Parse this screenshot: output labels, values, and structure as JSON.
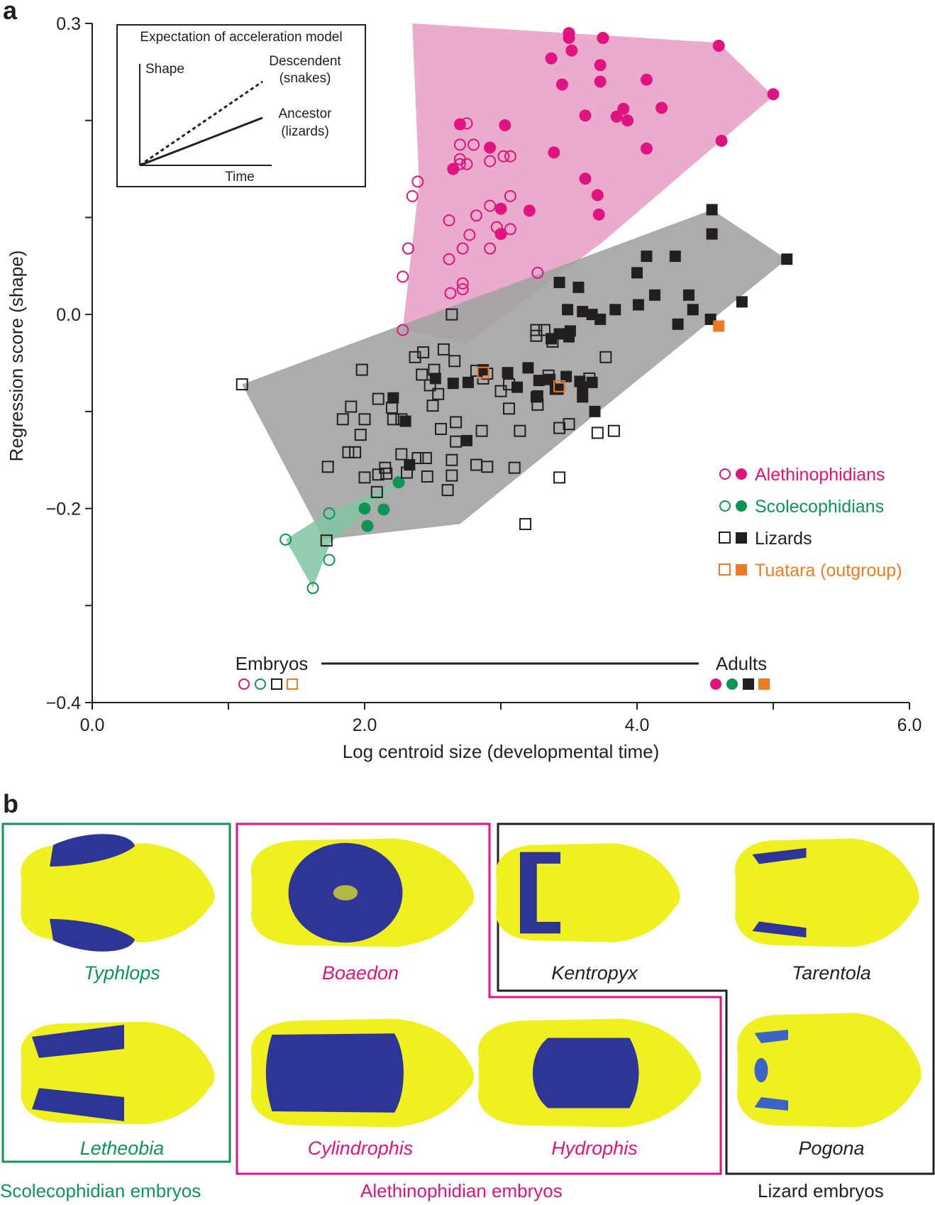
{
  "panel_a_letter": "a",
  "panel_b_letter": "b",
  "colors": {
    "alethinophidians": "#e0137f",
    "alethinophidians_fill": "#e89cc4",
    "scolecophidians": "#0e9455",
    "scolecophidians_fill": "#80c6a3",
    "lizards": "#231f20",
    "lizards_fill": "#a3a3a3",
    "tuatara": "#ee7b22",
    "skull_bone": "#eef01f",
    "skull_region": "#2f3596"
  },
  "chart_data": {
    "type": "scatter",
    "xlabel": "Log centroid size (developmental time)",
    "ylabel": "Regression score (shape)",
    "xlim": [
      0.0,
      6.0
    ],
    "ylim": [
      -0.4,
      0.3
    ],
    "xticks": [
      0.0,
      2.0,
      4.0,
      6.0
    ],
    "xtick_labels": [
      "0.0",
      "2.0",
      "4.0",
      "6.0"
    ],
    "yticks": [
      0.3,
      0.0,
      -0.2,
      -0.4
    ],
    "ytick_labels": [
      "0.3",
      "0.0",
      "−0.2",
      "−0.4"
    ],
    "legend": {
      "position": "right",
      "entries": [
        "Alethinophidians",
        "Scolecophidians",
        "Lizards",
        "Tuatara (outgroup)"
      ]
    },
    "inset": {
      "title": "Expectation of acceleration model",
      "ylabel": "Shape",
      "xlabel": "Time",
      "line_dashed_label_1": "Descendent",
      "line_dashed_label_2": "(snakes)",
      "line_solid_label_1": "Ancestor",
      "line_solid_label_2": "(lizards)"
    },
    "stage_key": {
      "embryos": "Embryos",
      "adults": "Adults"
    },
    "hulls": {
      "alethinophidians": [
        [
          2.35,
          0.3
        ],
        [
          3.5,
          0.29
        ],
        [
          4.6,
          0.28
        ],
        [
          5.0,
          0.225
        ],
        [
          3.75,
          0.075
        ],
        [
          2.75,
          -0.03
        ],
        [
          2.28,
          -0.015
        ],
        [
          2.4,
          0.135
        ]
      ],
      "lizards": [
        [
          1.1,
          -0.072
        ],
        [
          4.55,
          0.108
        ],
        [
          5.1,
          0.057
        ],
        [
          2.7,
          -0.216
        ],
        [
          1.7,
          -0.232
        ]
      ],
      "scolecophidians": [
        [
          2.25,
          -0.173
        ],
        [
          1.75,
          -0.235
        ],
        [
          1.62,
          -0.282
        ],
        [
          1.42,
          -0.232
        ],
        [
          1.72,
          -0.205
        ]
      ]
    },
    "series": [
      {
        "name": "Alethinophidian embryos",
        "marker": "circle",
        "filled": false,
        "group": "alethinophidians",
        "points": [
          [
            2.75,
            0.197
          ],
          [
            2.7,
            0.175
          ],
          [
            2.8,
            0.175
          ],
          [
            2.7,
            0.16
          ],
          [
            2.7,
            0.155
          ],
          [
            2.75,
            0.155
          ],
          [
            2.92,
            0.158
          ],
          [
            3.02,
            0.163
          ],
          [
            3.07,
            0.163
          ],
          [
            2.39,
            0.137
          ],
          [
            2.35,
            0.122
          ],
          [
            2.92,
            0.112
          ],
          [
            3.07,
            0.122
          ],
          [
            2.82,
            0.102
          ],
          [
            2.62,
            0.097
          ],
          [
            2.97,
            0.09
          ],
          [
            3.07,
            0.088
          ],
          [
            2.77,
            0.082
          ],
          [
            2.32,
            0.068
          ],
          [
            2.72,
            0.068
          ],
          [
            2.92,
            0.068
          ],
          [
            2.62,
            0.057
          ],
          [
            3.27,
            0.043
          ],
          [
            2.28,
            0.039
          ],
          [
            2.72,
            0.032
          ],
          [
            2.72,
            0.026
          ],
          [
            2.63,
            0.022
          ],
          [
            2.28,
            -0.016
          ]
        ]
      },
      {
        "name": "Alethinophidian adults",
        "marker": "circle",
        "filled": true,
        "group": "alethinophidians",
        "points": [
          [
            3.5,
            0.29
          ],
          [
            3.5,
            0.285
          ],
          [
            3.75,
            0.285
          ],
          [
            3.75,
            0.285
          ],
          [
            4.6,
            0.277
          ],
          [
            3.52,
            0.272
          ],
          [
            3.37,
            0.264
          ],
          [
            3.73,
            0.257
          ],
          [
            3.73,
            0.24
          ],
          [
            4.07,
            0.242
          ],
          [
            3.45,
            0.237
          ],
          [
            5.0,
            0.227
          ],
          [
            3.9,
            0.212
          ],
          [
            4.18,
            0.213
          ],
          [
            3.85,
            0.204
          ],
          [
            3.03,
            0.195
          ],
          [
            3.93,
            0.2
          ],
          [
            3.62,
            0.205
          ],
          [
            2.7,
            0.196
          ],
          [
            4.62,
            0.179
          ],
          [
            4.07,
            0.171
          ],
          [
            2.92,
            0.172
          ],
          [
            3.39,
            0.167
          ],
          [
            2.65,
            0.15
          ],
          [
            3.62,
            0.14
          ],
          [
            3.71,
            0.123
          ],
          [
            3.0,
            0.109
          ],
          [
            3.21,
            0.107
          ],
          [
            3.72,
            0.103
          ],
          [
            3.0,
            0.083
          ]
        ]
      },
      {
        "name": "Scolecophidian embryos",
        "marker": "circle",
        "filled": false,
        "group": "scolecophidians",
        "points": [
          [
            1.74,
            -0.205
          ],
          [
            1.42,
            -0.232
          ],
          [
            1.74,
            -0.253
          ],
          [
            1.62,
            -0.282
          ]
        ]
      },
      {
        "name": "Scolecophidian adults",
        "marker": "circle",
        "filled": true,
        "group": "scolecophidians",
        "points": [
          [
            2.25,
            -0.173
          ],
          [
            2.0,
            -0.2
          ],
          [
            2.14,
            -0.201
          ],
          [
            2.02,
            -0.218
          ]
        ]
      },
      {
        "name": "Lizard embryos",
        "marker": "square",
        "filled": false,
        "group": "lizards",
        "points": [
          [
            1.1,
            -0.072
          ],
          [
            2.64,
            0.0
          ],
          [
            3.26,
            -0.016
          ],
          [
            3.26,
            -0.022
          ],
          [
            3.32,
            -0.016
          ],
          [
            3.38,
            -0.028
          ],
          [
            2.43,
            -0.039
          ],
          [
            2.58,
            -0.036
          ],
          [
            2.66,
            -0.048
          ],
          [
            2.37,
            -0.044
          ],
          [
            2.51,
            -0.057
          ],
          [
            2.42,
            -0.062
          ],
          [
            2.82,
            -0.058
          ],
          [
            2.9,
            -0.061
          ],
          [
            2.87,
            -0.066
          ],
          [
            3.35,
            -0.063
          ],
          [
            3.65,
            -0.066
          ],
          [
            3.77,
            -0.044
          ],
          [
            1.98,
            -0.057
          ],
          [
            2.1,
            -0.087
          ],
          [
            2.48,
            -0.073
          ],
          [
            2.54,
            -0.082
          ],
          [
            3.0,
            -0.079
          ],
          [
            3.06,
            -0.072
          ],
          [
            1.9,
            -0.095
          ],
          [
            2.2,
            -0.096
          ],
          [
            2.5,
            -0.094
          ],
          [
            3.06,
            -0.097
          ],
          [
            3.27,
            -0.093
          ],
          [
            1.84,
            -0.108
          ],
          [
            2.0,
            -0.108
          ],
          [
            2.21,
            -0.108
          ],
          [
            2.56,
            -0.118
          ],
          [
            1.97,
            -0.124
          ],
          [
            2.27,
            -0.108
          ],
          [
            2.67,
            -0.111
          ],
          [
            3.5,
            -0.113
          ],
          [
            2.86,
            -0.12
          ],
          [
            3.14,
            -0.12
          ],
          [
            3.43,
            -0.117
          ],
          [
            3.71,
            -0.122
          ],
          [
            1.88,
            -0.142
          ],
          [
            1.93,
            -0.142
          ],
          [
            2.27,
            -0.144
          ],
          [
            2.39,
            -0.148
          ],
          [
            2.67,
            -0.131
          ],
          [
            3.83,
            -0.12
          ],
          [
            2.45,
            -0.148
          ],
          [
            2.64,
            -0.15
          ],
          [
            2.82,
            -0.155
          ],
          [
            1.73,
            -0.157
          ],
          [
            2.15,
            -0.158
          ],
          [
            2.31,
            -0.163
          ],
          [
            2.9,
            -0.157
          ],
          [
            3.1,
            -0.158
          ],
          [
            2.0,
            -0.168
          ],
          [
            2.1,
            -0.165
          ],
          [
            2.16,
            -0.164
          ],
          [
            2.46,
            -0.167
          ],
          [
            2.64,
            -0.166
          ],
          [
            3.43,
            -0.168
          ],
          [
            2.61,
            -0.181
          ],
          [
            2.09,
            -0.183
          ],
          [
            1.72,
            -0.233
          ],
          [
            3.18,
            -0.216
          ]
        ]
      },
      {
        "name": "Lizard adults",
        "marker": "square",
        "filled": true,
        "group": "lizards",
        "points": [
          [
            4.55,
            0.108
          ],
          [
            4.55,
            0.083
          ],
          [
            5.1,
            0.057
          ],
          [
            4.28,
            0.06
          ],
          [
            4.07,
            0.06
          ],
          [
            4.0,
            0.043
          ],
          [
            3.43,
            0.033
          ],
          [
            3.57,
            0.028
          ],
          [
            4.13,
            0.02
          ],
          [
            4.38,
            0.02
          ],
          [
            3.84,
            0.005
          ],
          [
            4.01,
            0.01
          ],
          [
            3.6,
            0.003
          ],
          [
            3.67,
            0.0
          ],
          [
            3.73,
            -0.005
          ],
          [
            4.3,
            -0.01
          ],
          [
            3.43,
            -0.02
          ],
          [
            3.51,
            -0.017
          ],
          [
            3.5,
            -0.023
          ],
          [
            3.37,
            -0.025
          ],
          [
            2.87,
            -0.057
          ],
          [
            3.2,
            -0.055
          ],
          [
            3.05,
            -0.06
          ],
          [
            3.28,
            -0.068
          ],
          [
            3.36,
            -0.067
          ],
          [
            3.48,
            -0.064
          ],
          [
            3.58,
            -0.069
          ],
          [
            2.76,
            -0.07
          ],
          [
            3.12,
            -0.075
          ],
          [
            3.4,
            -0.077
          ],
          [
            3.42,
            -0.077
          ],
          [
            3.6,
            -0.075
          ],
          [
            3.67,
            -0.07
          ],
          [
            3.6,
            -0.085
          ],
          [
            3.27,
            -0.084
          ],
          [
            3.26,
            -0.085
          ],
          [
            2.52,
            -0.066
          ],
          [
            2.65,
            -0.071
          ],
          [
            2.21,
            -0.086
          ],
          [
            2.75,
            -0.13
          ],
          [
            3.69,
            -0.1
          ],
          [
            2.3,
            -0.11
          ],
          [
            2.33,
            -0.155
          ],
          [
            4.54,
            -0.005
          ],
          [
            3.49,
            0.005
          ],
          [
            4.41,
            0.005
          ],
          [
            4.77,
            0.013
          ]
        ]
      },
      {
        "name": "Tuatara embryos",
        "marker": "square",
        "filled": false,
        "group": "tuatara",
        "points": [
          [
            2.87,
            -0.06
          ],
          [
            3.43,
            -0.074
          ]
        ]
      },
      {
        "name": "Tuatara adults",
        "marker": "square",
        "filled": true,
        "group": "tuatara",
        "points": [
          [
            4.6,
            -0.012
          ]
        ]
      }
    ]
  },
  "panel_b": {
    "groups": [
      {
        "label": "Scolecophidian embryos",
        "species": [
          "Typhlops",
          "Letheobia"
        ]
      },
      {
        "label": "Alethinophidian embryos",
        "species": [
          "Boaedon",
          "Cylindrophis",
          "Hydrophis"
        ]
      },
      {
        "label": "Lizard embryos",
        "species": [
          "Kentropyx",
          "Tarentola",
          "Pogona"
        ]
      }
    ]
  }
}
